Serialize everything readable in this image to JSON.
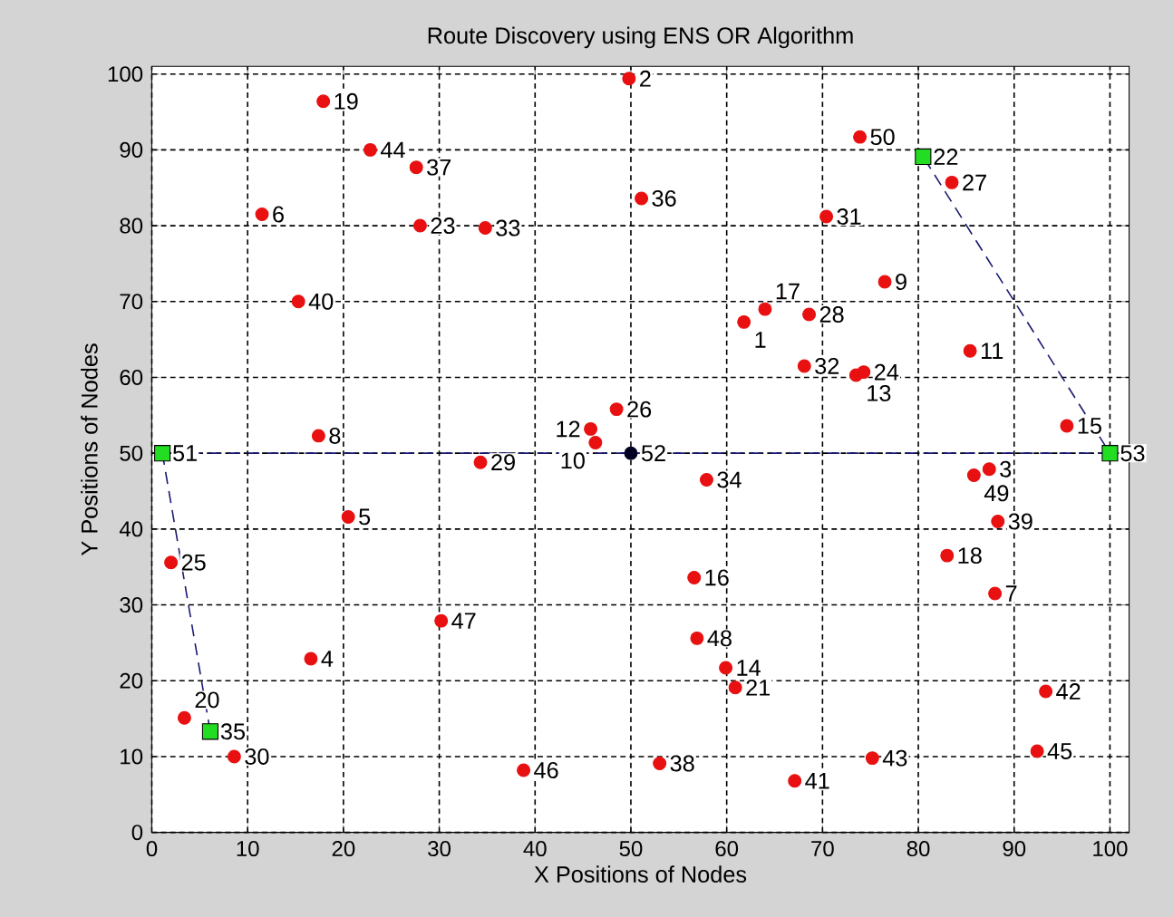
{
  "chart_data": {
    "type": "scatter",
    "title": "Route Discovery using ENS OR Algorithm",
    "xlabel": "X Positions of Nodes",
    "ylabel": "Y Positions of Nodes",
    "xlim": [
      0,
      102
    ],
    "ylim": [
      0,
      101
    ],
    "xticks": [
      0,
      10,
      20,
      30,
      40,
      50,
      60,
      70,
      80,
      90,
      100
    ],
    "yticks": [
      0,
      10,
      20,
      30,
      40,
      50,
      60,
      70,
      80,
      90,
      100
    ],
    "grid": true,
    "series": [
      {
        "type": "line",
        "line_style": "dashed",
        "marker": "none",
        "color": "#1a1a70",
        "x": [
          6.1,
          1.1,
          50,
          100,
          80.5
        ],
        "values": [
          13.3,
          50,
          50,
          50,
          89.1
        ]
      },
      {
        "type": "scatter",
        "marker": "circle",
        "color": "#e81010",
        "x": [
          61.8,
          49.8,
          87.4,
          16.6,
          20.5,
          11.5,
          88.0,
          17.4,
          76.5,
          46.3,
          85.4,
          45.8,
          73.5,
          59.9,
          95.5,
          56.6,
          64.0,
          83.0,
          17.9,
          3.4,
          60.9,
          28.0,
          74.3,
          2.0,
          48.5,
          83.5,
          68.6,
          34.3,
          8.6,
          70.4,
          68.1,
          34.8,
          57.9,
          51.1,
          27.6,
          53.0,
          88.3,
          15.3,
          67.1,
          93.3,
          75.2,
          22.8,
          92.4,
          38.8,
          30.2,
          56.9,
          85.8,
          73.9
        ],
        "values": [
          67.3,
          99.4,
          47.9,
          22.9,
          41.6,
          81.5,
          31.5,
          52.3,
          72.6,
          51.4,
          63.5,
          53.2,
          60.3,
          21.7,
          53.6,
          33.6,
          69.0,
          36.5,
          96.4,
          15.1,
          19.1,
          80.0,
          60.7,
          35.6,
          55.8,
          85.7,
          68.3,
          48.8,
          10.0,
          81.2,
          61.5,
          79.7,
          46.5,
          83.6,
          87.7,
          9.1,
          41.0,
          70.0,
          6.8,
          18.6,
          9.8,
          90.0,
          10.7,
          8.2,
          27.9,
          25.6,
          47.1,
          91.7
        ]
      },
      {
        "type": "scatter",
        "marker": "square",
        "color": "#22dd22",
        "x": [
          80.5,
          6.1,
          1.1,
          100
        ],
        "values": [
          89.1,
          13.3,
          50,
          50
        ]
      },
      {
        "type": "scatter",
        "marker": "circle",
        "color": "#000020",
        "x": [
          50
        ],
        "values": [
          50
        ]
      }
    ],
    "annotations": [
      {
        "text": "1",
        "x": 61.8,
        "y": 67.3
      },
      {
        "text": "2",
        "x": 49.8,
        "y": 99.4
      },
      {
        "text": "3",
        "x": 87.4,
        "y": 47.9
      },
      {
        "text": "4",
        "x": 16.6,
        "y": 22.9
      },
      {
        "text": "5",
        "x": 20.5,
        "y": 41.6
      },
      {
        "text": "6",
        "x": 11.5,
        "y": 81.5
      },
      {
        "text": "7",
        "x": 88.0,
        "y": 31.5
      },
      {
        "text": "8",
        "x": 17.4,
        "y": 52.3
      },
      {
        "text": "9",
        "x": 76.5,
        "y": 72.6
      },
      {
        "text": "10",
        "x": 46.3,
        "y": 51.4
      },
      {
        "text": "11",
        "x": 85.4,
        "y": 63.5
      },
      {
        "text": "12",
        "x": 45.8,
        "y": 53.2
      },
      {
        "text": "13",
        "x": 73.5,
        "y": 60.3
      },
      {
        "text": "14",
        "x": 59.9,
        "y": 21.7
      },
      {
        "text": "15",
        "x": 95.5,
        "y": 53.6
      },
      {
        "text": "16",
        "x": 56.6,
        "y": 33.6
      },
      {
        "text": "17",
        "x": 64.0,
        "y": 69.0
      },
      {
        "text": "18",
        "x": 83.0,
        "y": 36.5
      },
      {
        "text": "19",
        "x": 17.9,
        "y": 96.4
      },
      {
        "text": "20",
        "x": 3.4,
        "y": 15.1
      },
      {
        "text": "21",
        "x": 60.9,
        "y": 19.1
      },
      {
        "text": "22",
        "x": 80.5,
        "y": 89.1
      },
      {
        "text": "23",
        "x": 28.0,
        "y": 80.0
      },
      {
        "text": "24",
        "x": 74.3,
        "y": 60.7
      },
      {
        "text": "25",
        "x": 2.0,
        "y": 35.6
      },
      {
        "text": "26",
        "x": 48.5,
        "y": 55.8
      },
      {
        "text": "27",
        "x": 83.5,
        "y": 85.7
      },
      {
        "text": "28",
        "x": 68.6,
        "y": 68.3
      },
      {
        "text": "29",
        "x": 34.3,
        "y": 48.8
      },
      {
        "text": "30",
        "x": 8.6,
        "y": 10.0
      },
      {
        "text": "31",
        "x": 70.4,
        "y": 81.2
      },
      {
        "text": "32",
        "x": 68.1,
        "y": 61.5
      },
      {
        "text": "33",
        "x": 34.8,
        "y": 79.7
      },
      {
        "text": "34",
        "x": 57.9,
        "y": 46.5
      },
      {
        "text": "35",
        "x": 6.1,
        "y": 13.3
      },
      {
        "text": "36",
        "x": 51.1,
        "y": 83.6
      },
      {
        "text": "37",
        "x": 27.6,
        "y": 87.7
      },
      {
        "text": "38",
        "x": 53.0,
        "y": 9.1
      },
      {
        "text": "39",
        "x": 88.3,
        "y": 41.0
      },
      {
        "text": "40",
        "x": 15.3,
        "y": 70.0
      },
      {
        "text": "41",
        "x": 67.1,
        "y": 6.8
      },
      {
        "text": "42",
        "x": 93.3,
        "y": 18.6
      },
      {
        "text": "43",
        "x": 75.2,
        "y": 9.8
      },
      {
        "text": "44",
        "x": 22.8,
        "y": 90.0
      },
      {
        "text": "45",
        "x": 92.4,
        "y": 10.7
      },
      {
        "text": "46",
        "x": 38.8,
        "y": 8.2
      },
      {
        "text": "47",
        "x": 30.2,
        "y": 27.9
      },
      {
        "text": "48",
        "x": 56.9,
        "y": 25.6
      },
      {
        "text": "49",
        "x": 85.8,
        "y": 47.1
      },
      {
        "text": "50",
        "x": 73.9,
        "y": 91.7
      },
      {
        "text": "51",
        "x": 1.1,
        "y": 50
      },
      {
        "text": "52",
        "x": 50,
        "y": 50
      },
      {
        "text": "53",
        "x": 100,
        "y": 50
      }
    ]
  }
}
